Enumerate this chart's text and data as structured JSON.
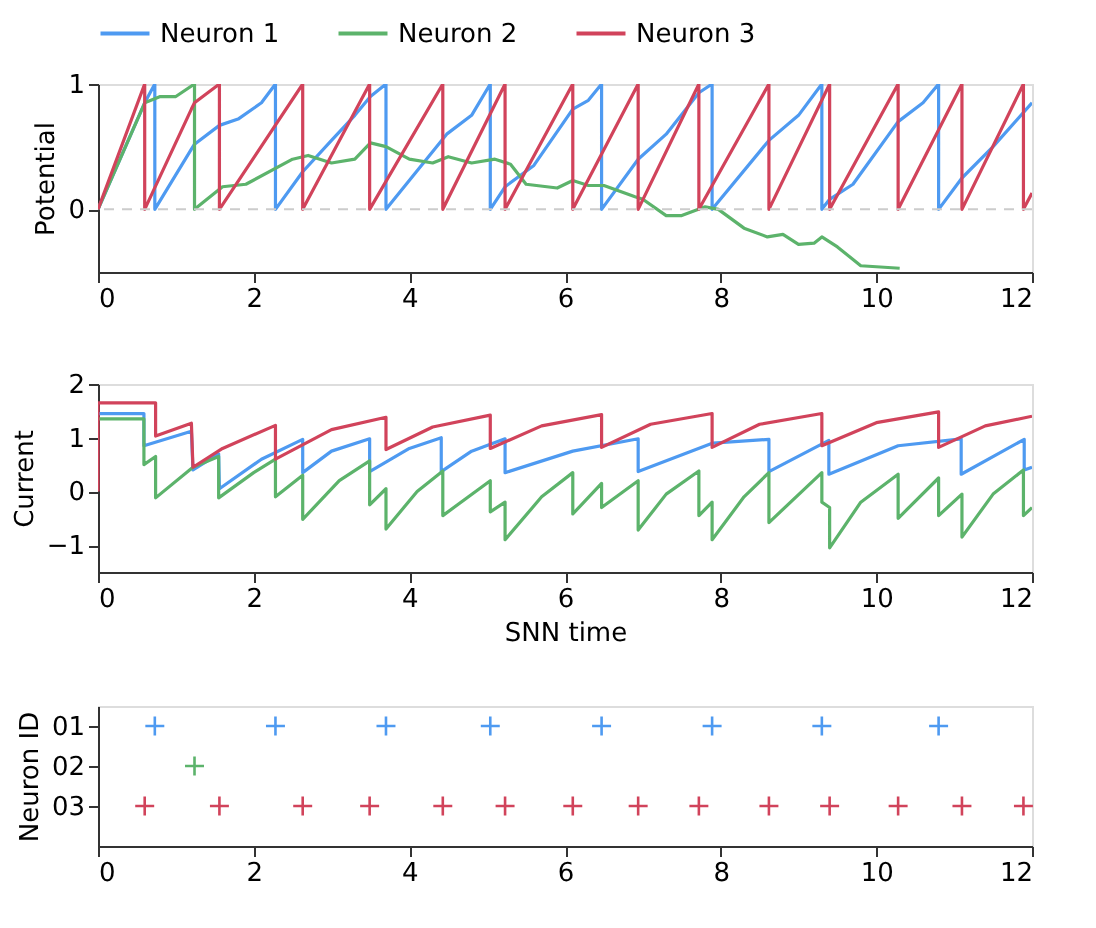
{
  "chart_data": [
    {
      "type": "line",
      "ylabel": "Potential",
      "xlim": [
        0,
        12
      ],
      "xticks": [
        0,
        2,
        4,
        6,
        8,
        10,
        12
      ],
      "ylim": [
        -0.5,
        1
      ],
      "yticks": [
        0,
        1
      ],
      "grid": false,
      "legend": "top",
      "line_style": "solid",
      "ref_lines": [
        {
          "axis": "y",
          "value": 0,
          "color": "#cccccc",
          "line_style": "dashed"
        }
      ],
      "series": [
        {
          "name": "Neuron 1",
          "color": "#4e9af1",
          "x": [
            0,
            0.6,
            0.73,
            0.73,
            1.2,
            1.24,
            1.56,
            1.8,
            2.1,
            2.28,
            2.28,
            2.63,
            3.0,
            3.3,
            3.5,
            3.7,
            3.7,
            4.48,
            4.8,
            5.04,
            5.04,
            5.23,
            5.6,
            6.1,
            6.3,
            6.47,
            6.47,
            6.94,
            7.3,
            7.72,
            7.89,
            7.89,
            8.62,
            9.0,
            9.3,
            9.3,
            9.4,
            9.7,
            10.28,
            10.6,
            10.8,
            10.8,
            11.1,
            11.5,
            12
          ],
          "values": [
            0,
            0.85,
            1,
            0,
            0.48,
            0.52,
            0.67,
            0.72,
            0.85,
            1,
            0,
            0.3,
            0.55,
            0.75,
            0.9,
            1,
            0,
            0.6,
            0.75,
            1,
            0,
            0.18,
            0.35,
            0.8,
            0.87,
            1,
            0,
            0.4,
            0.6,
            0.93,
            1,
            0,
            0.55,
            0.75,
            1,
            0,
            0.08,
            0.2,
            0.7,
            0.85,
            1,
            0,
            0.25,
            0.5,
            0.85
          ]
        },
        {
          "name": "Neuron 2",
          "color": "#5cb36b",
          "x": [
            0,
            0.6,
            0.8,
            1.0,
            1.24,
            1.24,
            1.6,
            1.9,
            2.5,
            2.7,
            3.0,
            3.3,
            3.5,
            3.7,
            4.0,
            4.3,
            4.5,
            4.8,
            5.1,
            5.3,
            5.5,
            5.9,
            6.1,
            6.3,
            6.5,
            6.9,
            7.0,
            7.3,
            7.5,
            7.8,
            7.97,
            8.3,
            8.6,
            8.8,
            9.0,
            9.2,
            9.3,
            9.5,
            9.8,
            10.3
          ],
          "values": [
            0,
            0.85,
            0.9,
            0.9,
            1,
            0,
            0.18,
            0.2,
            0.4,
            0.43,
            0.37,
            0.4,
            0.53,
            0.5,
            0.4,
            0.37,
            0.42,
            0.37,
            0.4,
            0.36,
            0.2,
            0.17,
            0.23,
            0.19,
            0.19,
            0.1,
            0.08,
            -0.05,
            -0.05,
            0.02,
            0,
            -0.15,
            -0.22,
            -0.2,
            -0.28,
            -0.27,
            -0.22,
            -0.3,
            -0.45,
            -0.47
          ]
        },
        {
          "name": "Neuron 3",
          "color": "#d1435b",
          "x": [
            0,
            0.6,
            0.6,
            1.2,
            1.24,
            1.56,
            1.56,
            2.63,
            2.63,
            3.49,
            3.49,
            4.43,
            4.43,
            5.23,
            5.23,
            6.1,
            6.1,
            6.94,
            6.94,
            7.72,
            7.72,
            8.62,
            8.62,
            9.4,
            9.4,
            10.28,
            10.28,
            11.1,
            11.1,
            11.89,
            11.89,
            12
          ],
          "values": [
            0,
            1,
            0,
            0.8,
            0.85,
            1,
            0,
            1,
            0,
            1,
            0,
            1,
            0,
            1,
            0,
            1,
            0,
            1,
            0,
            1,
            0,
            1,
            0,
            1,
            0,
            1,
            0,
            1,
            0,
            1,
            0,
            0.13
          ]
        }
      ]
    },
    {
      "type": "line",
      "xlabel": "SNN time",
      "ylabel": "Current",
      "xlim": [
        0,
        12
      ],
      "xticks": [
        0,
        2,
        4,
        6,
        8,
        10,
        12
      ],
      "ylim": [
        -1.5,
        2
      ],
      "yticks": [
        -1,
        0,
        1,
        2
      ],
      "grid": false,
      "line_style": "solid",
      "series": [
        {
          "color": "#4e9af1",
          "x": [
            0,
            0.59,
            0.59,
            1.2,
            1.22,
            1.55,
            1.56,
            2.1,
            2.63,
            2.63,
            3.0,
            3.49,
            3.49,
            4.0,
            4.41,
            4.41,
            4.8,
            5.23,
            5.23,
            6.1,
            6.94,
            6.94,
            7.9,
            8.62,
            8.62,
            9.39,
            9.39,
            10.28,
            11.09,
            11.09,
            11.9,
            11.9,
            12
          ],
          "values": [
            1.45,
            1.45,
            0.85,
            1.12,
            0.4,
            0.7,
            0.05,
            0.6,
            0.97,
            0.35,
            0.75,
            0.98,
            0.37,
            0.8,
            1.0,
            0.37,
            0.75,
            0.98,
            0.35,
            0.75,
            0.98,
            0.37,
            0.9,
            0.97,
            0.37,
            0.95,
            0.32,
            0.85,
            0.98,
            0.32,
            0.97,
            0.4,
            0.45
          ]
        },
        {
          "color": "#5cb36b",
          "x": [
            0,
            0.59,
            0.59,
            0.74,
            0.74,
            1.22,
            1.55,
            1.55,
            2.0,
            2.28,
            2.28,
            2.63,
            2.63,
            3.1,
            3.49,
            3.49,
            3.7,
            3.7,
            4.1,
            4.43,
            4.43,
            5.04,
            5.04,
            5.23,
            5.23,
            5.7,
            6.1,
            6.1,
            6.47,
            6.47,
            6.94,
            6.94,
            7.3,
            7.72,
            7.72,
            7.89,
            7.89,
            8.3,
            8.62,
            8.62,
            9.3,
            9.3,
            9.4,
            9.4,
            9.8,
            10.28,
            10.28,
            10.8,
            10.8,
            11.1,
            11.1,
            11.5,
            11.89,
            11.89,
            12
          ],
          "values": [
            1.35,
            1.35,
            0.5,
            0.65,
            -0.12,
            0.45,
            0.65,
            -0.12,
            0.35,
            0.6,
            -0.1,
            0.3,
            -0.52,
            0.2,
            0.57,
            -0.25,
            0.05,
            -0.7,
            0.0,
            0.38,
            -0.45,
            0.2,
            -0.38,
            -0.2,
            -0.9,
            -0.1,
            0.35,
            -0.42,
            0.15,
            -0.3,
            0.2,
            -0.72,
            -0.05,
            0.38,
            -0.45,
            -0.2,
            -0.9,
            -0.1,
            0.35,
            -0.58,
            0.35,
            -0.2,
            -0.3,
            -1.05,
            -0.2,
            0.32,
            -0.5,
            0.25,
            -0.45,
            -0.05,
            -0.85,
            -0.05,
            0.4,
            -0.45,
            -0.3
          ]
        },
        {
          "color": "#d1435b",
          "x": [
            0,
            0,
            0.74,
            0.74,
            1.2,
            1.22,
            1.6,
            2.28,
            2.28,
            3.0,
            3.7,
            3.7,
            4.3,
            5.04,
            5.04,
            5.7,
            6.47,
            6.47,
            7.1,
            7.89,
            7.89,
            8.5,
            9.3,
            9.3,
            10.0,
            10.8,
            10.8,
            11.4,
            12
          ],
          "values": [
            0,
            1.65,
            1.65,
            1.03,
            1.27,
            0.45,
            0.8,
            1.23,
            0.6,
            1.15,
            1.38,
            0.78,
            1.2,
            1.42,
            0.8,
            1.22,
            1.43,
            0.82,
            1.25,
            1.45,
            0.82,
            1.25,
            1.45,
            0.85,
            1.28,
            1.48,
            0.82,
            1.22,
            1.4
          ]
        }
      ]
    },
    {
      "type": "scatter",
      "ylabel": "Neuron ID",
      "xlim": [
        0,
        12
      ],
      "xticks": [
        0,
        2,
        4,
        6,
        8,
        10,
        12
      ],
      "ylim": [
        4,
        0.5
      ],
      "yticks": [
        {
          "value": 1,
          "label": "01"
        },
        {
          "value": 2,
          "label": "02"
        },
        {
          "value": 3,
          "label": "03"
        }
      ],
      "grid": false,
      "marker": "cross",
      "series": [
        {
          "color": "#4e9af1",
          "x": [
            0.73,
            2.28,
            3.7,
            5.04,
            6.47,
            7.89,
            9.3,
            10.8
          ],
          "values": [
            1,
            1,
            1,
            1,
            1,
            1,
            1,
            1
          ]
        },
        {
          "color": "#5cb36b",
          "x": [
            1.24
          ],
          "values": [
            2
          ]
        },
        {
          "color": "#d1435b",
          "x": [
            0.6,
            1.56,
            2.63,
            3.49,
            4.43,
            5.23,
            6.1,
            6.94,
            7.72,
            8.62,
            9.4,
            10.28,
            11.1,
            11.89
          ],
          "values": [
            3,
            3,
            3,
            3,
            3,
            3,
            3,
            3,
            3,
            3,
            3,
            3,
            3,
            3
          ]
        }
      ]
    }
  ]
}
